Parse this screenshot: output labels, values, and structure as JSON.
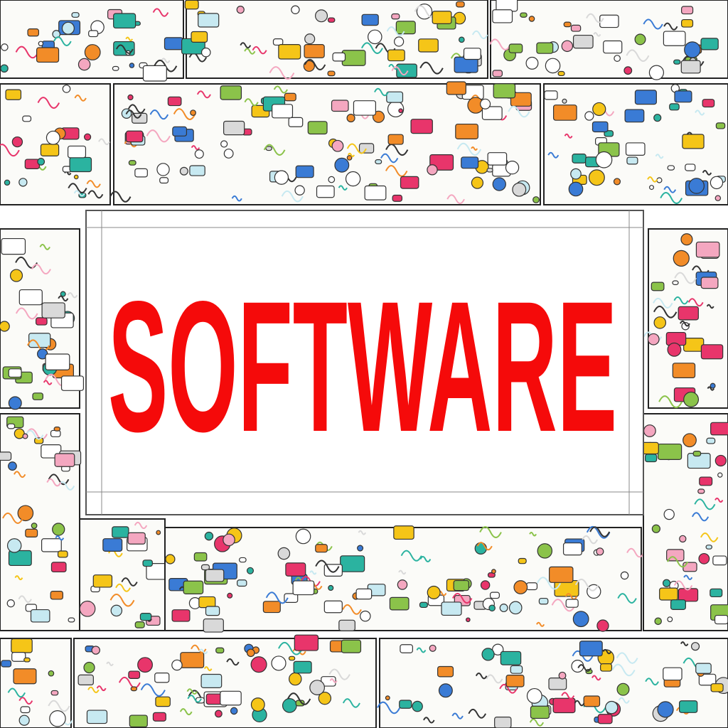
{
  "banner": {
    "title": "SOFTWARE"
  }
}
